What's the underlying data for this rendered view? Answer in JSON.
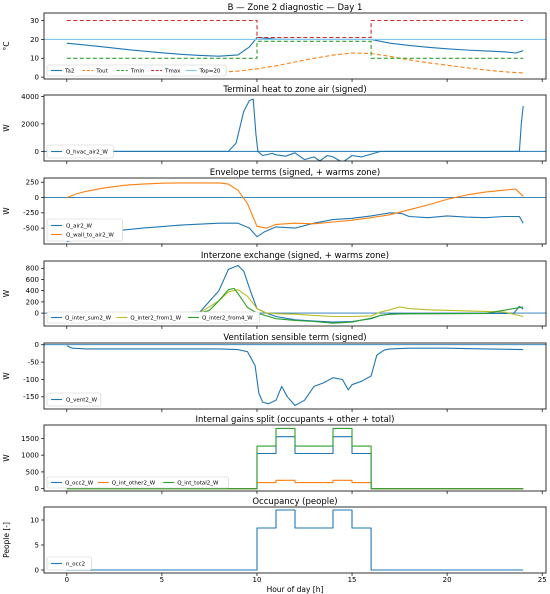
{
  "chart_data": [
    {
      "type": "line",
      "title": "B — Zone 2 diagnostic — Day 1",
      "ylabel": "°C",
      "xlim": [
        -1.2,
        25.2
      ],
      "ylim": [
        -1,
        34
      ],
      "yticks": [
        0,
        10,
        20,
        30
      ],
      "series": [
        {
          "name": "Ta2",
          "color": "#1f77b4",
          "dash": "",
          "x": [
            0,
            1,
            2,
            3,
            4,
            5,
            6,
            7,
            8,
            9,
            9.6,
            10,
            10.5,
            11,
            12,
            13,
            14,
            15,
            16,
            17,
            18,
            19,
            20,
            21,
            22,
            23,
            23.6,
            24
          ],
          "y": [
            18,
            17,
            15.9,
            14.8,
            13.8,
            12.9,
            12.1,
            11.5,
            11.1,
            11.8,
            16,
            21,
            20.6,
            20.1,
            20,
            20,
            20,
            20,
            20,
            18,
            16.8,
            15.8,
            15,
            14.4,
            13.9,
            13.4,
            12.8,
            14
          ]
        },
        {
          "name": "Tout",
          "color": "#ff7f0e",
          "dash": "4,2.5",
          "x": [
            0,
            2,
            4,
            6,
            7,
            8,
            9,
            10,
            11,
            12,
            13,
            14,
            15,
            16,
            17,
            18,
            19,
            20,
            21,
            22,
            23,
            24
          ],
          "y": [
            6.2,
            4.8,
            3.6,
            2.6,
            2.2,
            2.5,
            3.2,
            4.4,
            6,
            8,
            10,
            11.7,
            12.8,
            12.5,
            11,
            9.2,
            7.6,
            6.3,
            5,
            3.8,
            2.8,
            2.2
          ]
        },
        {
          "name": "Tmin",
          "color": "#2ca02c",
          "dash": "4,2.5",
          "x": [
            0,
            10,
            10,
            16,
            16,
            24
          ],
          "y": [
            10,
            10,
            19,
            19,
            10,
            10
          ]
        },
        {
          "name": "Tmax",
          "color": "#d62728",
          "dash": "4,2.5",
          "x": [
            0,
            10,
            10,
            16,
            16,
            24
          ],
          "y": [
            30,
            30,
            21,
            21,
            30,
            30
          ]
        },
        {
          "name": "Top=20",
          "color": "#7fc7f0",
          "dash": "",
          "x": [
            -1.2,
            25.2
          ],
          "y": [
            20,
            20
          ]
        }
      ],
      "legend": {
        "position": "lower-left",
        "layout": "row"
      }
    },
    {
      "type": "line",
      "title": "Terminal heat to zone air (signed)",
      "ylabel": "W",
      "xlim": [
        -1.2,
        25.2
      ],
      "ylim": [
        -700,
        4100
      ],
      "yticks": [
        0,
        2000,
        4000
      ],
      "hline": 0,
      "series": [
        {
          "name": "Q_hvac_air2_W",
          "color": "#1f77b4",
          "dash": "",
          "x": [
            0,
            8.5,
            8.9,
            9.3,
            9.6,
            9.8,
            9.95,
            10.05,
            10.3,
            10.8,
            11,
            11.5,
            12,
            12.5,
            13,
            13.3,
            13.7,
            14,
            14.5,
            15,
            15.5,
            16,
            16.5,
            17,
            17.5,
            18,
            20,
            22,
            23.8,
            23.9,
            24
          ],
          "y": [
            0,
            0,
            600,
            2900,
            3700,
            3800,
            1200,
            0,
            -300,
            -150,
            -250,
            -350,
            -100,
            -600,
            -400,
            -700,
            -300,
            -400,
            -800,
            -300,
            -400,
            -200,
            0,
            0,
            0,
            0,
            0,
            0,
            0,
            2000,
            3300
          ]
        }
      ],
      "legend": {
        "position": "lower-left",
        "layout": "column"
      }
    },
    {
      "type": "line",
      "title": "Envelope terms (signed, + warms zone)",
      "ylabel": "W",
      "xlim": [
        -1.2,
        25.2
      ],
      "ylim": [
        -760,
        320
      ],
      "yticks": [
        -500,
        -250,
        0,
        250
      ],
      "hline": 0,
      "series": [
        {
          "name": "Q_air2_W",
          "color": "#1f77b4",
          "dash": "",
          "x": [
            0,
            1,
            2,
            4,
            6,
            8,
            9,
            9.6,
            10,
            10.4,
            11,
            12,
            13,
            14,
            15,
            16,
            17,
            17.6,
            18,
            19,
            20,
            21,
            22,
            23,
            23.8,
            24
          ],
          "y": [
            -720,
            -640,
            -560,
            -500,
            -450,
            -420,
            -420,
            -500,
            -640,
            -560,
            -480,
            -500,
            -420,
            -360,
            -340,
            -300,
            -250,
            -260,
            -310,
            -330,
            -300,
            -320,
            -330,
            -310,
            -310,
            -420
          ]
        },
        {
          "name": "Q_wall_to_air2_W",
          "color": "#ff7f0e",
          "dash": "",
          "x": [
            0,
            0.5,
            1,
            2,
            3,
            4,
            5,
            6,
            7,
            8,
            8.5,
            9,
            9.5,
            10,
            10.5,
            11,
            12,
            13,
            14,
            15,
            16,
            17,
            18,
            19,
            20,
            21,
            22,
            23,
            23.6,
            24
          ],
          "y": [
            0,
            60,
            100,
            160,
            200,
            220,
            235,
            240,
            240,
            240,
            220,
            120,
            -100,
            -470,
            -500,
            -440,
            -420,
            -430,
            -400,
            -370,
            -330,
            -280,
            -200,
            -120,
            -30,
            40,
            90,
            120,
            140,
            20
          ]
        }
      ],
      "legend": {
        "position": "lower-left",
        "layout": "column"
      }
    },
    {
      "type": "line",
      "title": "Interzone exchange (signed, + warms zone)",
      "ylabel": "W",
      "xlim": [
        -1.2,
        25.2
      ],
      "ylim": [
        -230,
        930
      ],
      "yticks": [
        0,
        200,
        400,
        600,
        800
      ],
      "hline": 0,
      "series": [
        {
          "name": "Q_inter_sum2_W",
          "color": "#1f77b4",
          "dash": "",
          "x": [
            0,
            6,
            7,
            8,
            8.5,
            9,
            9.3,
            9.7,
            10,
            10.5,
            11,
            12,
            13,
            14,
            15,
            16,
            16.5,
            17,
            18,
            20,
            22,
            23.5,
            23.8,
            24
          ],
          "y": [
            0,
            0,
            20,
            400,
            780,
            850,
            750,
            350,
            80,
            0,
            -60,
            -120,
            -140,
            -160,
            -150,
            -100,
            -40,
            -20,
            -10,
            -5,
            -5,
            -5,
            120,
            70
          ]
        },
        {
          "name": "Q_inter2_from1_W",
          "color": "#bcbd22",
          "dash": "",
          "x": [
            0,
            6,
            7,
            8,
            8.5,
            9,
            9.5,
            10,
            10.5,
            11,
            12,
            13,
            14,
            15,
            16,
            16.5,
            17,
            17.5,
            18,
            19,
            20,
            21,
            22,
            23,
            24
          ],
          "y": [
            0,
            0,
            10,
            220,
            380,
            420,
            300,
            80,
            0,
            -10,
            -20,
            -40,
            -60,
            -60,
            -50,
            20,
            60,
            110,
            80,
            60,
            50,
            40,
            30,
            20,
            -60
          ]
        },
        {
          "name": "Q_inter2_from4_W",
          "color": "#2ca02c",
          "dash": "",
          "x": [
            0,
            6,
            7,
            7.5,
            8,
            8.5,
            8.8,
            9.1,
            9.5,
            10,
            10.5,
            11,
            12,
            13,
            14,
            15,
            16,
            16.5,
            17,
            18,
            20,
            22,
            23.5,
            24
          ],
          "y": [
            0,
            0,
            0,
            50,
            220,
            420,
            440,
            300,
            100,
            0,
            -50,
            -100,
            -130,
            -150,
            -180,
            -160,
            -90,
            -40,
            -20,
            -10,
            -10,
            -5,
            80,
            110
          ]
        }
      ],
      "legend": {
        "position": "lower-left",
        "layout": "row"
      }
    },
    {
      "type": "line",
      "title": "Ventilation sensible term (signed)",
      "ylabel": "W",
      "xlim": [
        -1.2,
        25.2
      ],
      "ylim": [
        -185,
        5
      ],
      "yticks": [
        -150,
        -100,
        -50,
        0
      ],
      "hline": 0,
      "series": [
        {
          "name": "Q_vent2_W",
          "color": "#1f77b4",
          "dash": "",
          "x": [
            0,
            0.3,
            1,
            2,
            4,
            6,
            8,
            9,
            9.5,
            9.9,
            10.1,
            10.3,
            10.6,
            11,
            11.3,
            11.6,
            12,
            12.5,
            13,
            13.5,
            14,
            14.5,
            14.8,
            15,
            15.5,
            16,
            16.3,
            16.7,
            17,
            18,
            20,
            22,
            24
          ],
          "y": [
            -3,
            -10,
            -12,
            -12,
            -12,
            -12,
            -12,
            -14,
            -20,
            -60,
            -140,
            -165,
            -170,
            -160,
            -120,
            -150,
            -175,
            -160,
            -120,
            -110,
            -95,
            -100,
            -130,
            -115,
            -105,
            -90,
            -30,
            -15,
            -12,
            -10,
            -10,
            -12,
            -14
          ]
        }
      ],
      "legend": {
        "position": "lower-left",
        "layout": "column"
      }
    },
    {
      "type": "line",
      "title": "Internal gains split (occupants + other + total)",
      "ylabel": "W",
      "xlim": [
        -1.2,
        25.2
      ],
      "ylim": [
        -70,
        1900
      ],
      "yticks": [
        0,
        500,
        1000,
        1500
      ],
      "series": [
        {
          "name": "Q_occ2_W",
          "color": "#1f77b4",
          "dash": "",
          "x": [
            0,
            10,
            10,
            11,
            11,
            12,
            12,
            14,
            14,
            15,
            15,
            16,
            16,
            24
          ],
          "y": [
            0,
            0,
            1050,
            1050,
            1550,
            1550,
            1050,
            1050,
            1550,
            1550,
            1050,
            1050,
            0,
            0
          ]
        },
        {
          "name": "Q_int_other2_W",
          "color": "#ff7f0e",
          "dash": "",
          "x": [
            0,
            10,
            10,
            11,
            11,
            12,
            12,
            14,
            14,
            15,
            15,
            16,
            16,
            24
          ],
          "y": [
            0,
            0,
            180,
            180,
            250,
            250,
            180,
            180,
            250,
            250,
            180,
            180,
            0,
            0
          ]
        },
        {
          "name": "Q_int_total2_W",
          "color": "#2ca02c",
          "dash": "",
          "x": [
            0,
            10,
            10,
            11,
            11,
            12,
            12,
            14,
            14,
            15,
            15,
            16,
            16,
            24
          ],
          "y": [
            0,
            0,
            1270,
            1270,
            1800,
            1800,
            1270,
            1270,
            1800,
            1800,
            1270,
            1270,
            0,
            0
          ]
        }
      ],
      "legend": {
        "position": "lower-left",
        "layout": "row"
      }
    },
    {
      "type": "line",
      "title": "Occupancy (people)",
      "ylabel": "People [-]",
      "xlabel": "Hour of day [h]",
      "xlim": [
        -1.2,
        25.2
      ],
      "ylim": [
        -0.6,
        12.6
      ],
      "yticks": [
        0,
        5,
        10
      ],
      "xticks": [
        0,
        5,
        10,
        15,
        20,
        25
      ],
      "series": [
        {
          "name": "n_occ2",
          "color": "#1f77b4",
          "dash": "",
          "x": [
            0,
            10,
            10,
            11,
            11,
            12,
            12,
            14,
            14,
            15,
            15,
            16,
            16,
            24
          ],
          "y": [
            0,
            0,
            8.4,
            8.4,
            12,
            12,
            8.4,
            8.4,
            12,
            12,
            8.4,
            8.4,
            0,
            0
          ]
        }
      ],
      "legend": {
        "position": "lower-left",
        "layout": "column"
      }
    }
  ]
}
